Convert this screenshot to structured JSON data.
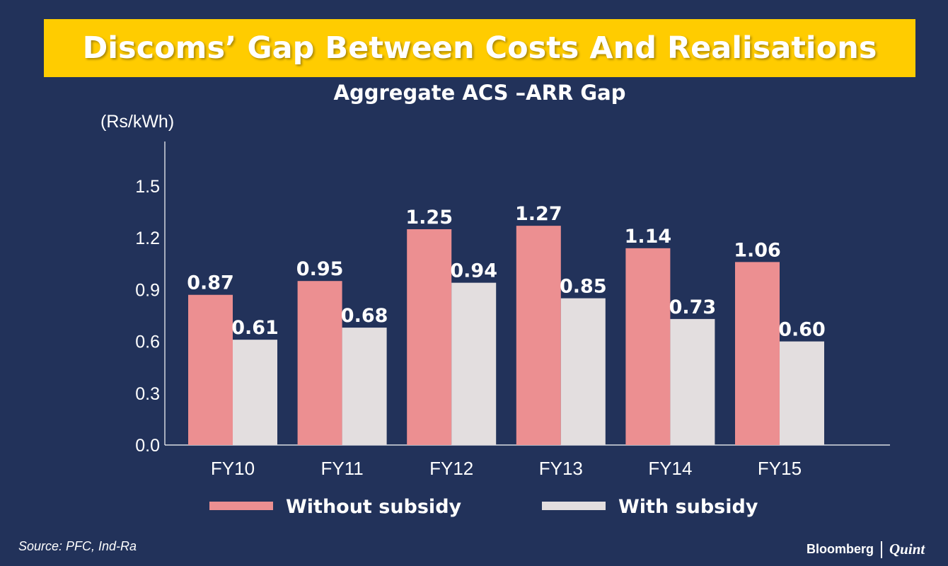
{
  "header": {
    "title": "Discoms’ Gap Between Costs And Realisations",
    "accent": "#ffcc00"
  },
  "footer": {
    "source": "Source: PFC, Ind-Ra",
    "brand_primary": "Bloomberg",
    "brand_secondary": "Quint"
  },
  "chart_data": {
    "type": "bar",
    "title": "Aggregate ACS –ARR Gap",
    "ylabel": "(Rs/kWh)",
    "xlabel": "",
    "categories": [
      "FY10",
      "FY11",
      "FY12",
      "FY13",
      "FY14",
      "FY15"
    ],
    "series": [
      {
        "name": "Without subsidy",
        "color": "#ec8f91",
        "values": [
          0.87,
          0.95,
          1.25,
          1.27,
          1.14,
          1.06
        ],
        "labels": [
          "0.87",
          "0.95",
          "1.25",
          "1.27",
          "1.14",
          "1.06"
        ]
      },
      {
        "name": "With subsidy",
        "color": "#e3dedf",
        "values": [
          0.61,
          0.68,
          0.94,
          0.85,
          0.73,
          0.6
        ],
        "labels": [
          "0.61",
          "0.68",
          "0.94",
          "0.85",
          "0.73",
          "0.60"
        ]
      }
    ],
    "yticks": [
      0.0,
      0.3,
      0.6,
      0.9,
      1.2,
      1.5
    ],
    "ytick_labels": [
      "0.0",
      "0.3",
      "0.6",
      "0.9",
      "1.2",
      "1.5"
    ],
    "ylim": [
      0,
      1.758
    ],
    "grid": false,
    "legend_position": "bottom"
  }
}
